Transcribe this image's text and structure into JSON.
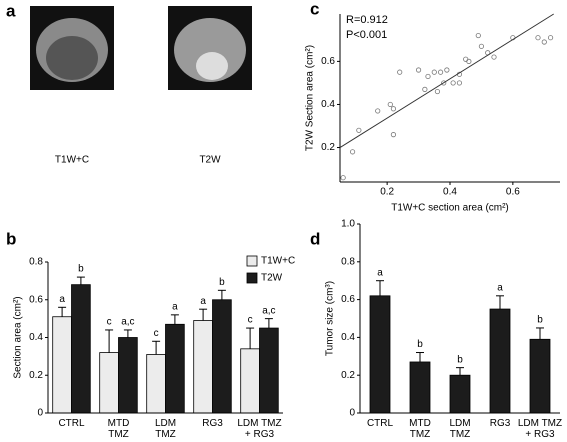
{
  "image_panel": {
    "panel": "a",
    "labels": [
      "T1W+C",
      "T2W"
    ]
  },
  "chart_data": [
    {
      "type": "scatter",
      "panel": "c",
      "xlabel": "T1W+C section area (cm²)",
      "ylabel": "T2W Section area (cm²)",
      "annotations": [
        "R=0.912",
        "P<0.001"
      ],
      "x": [
        0.06,
        0.09,
        0.11,
        0.17,
        0.21,
        0.22,
        0.22,
        0.24,
        0.3,
        0.32,
        0.33,
        0.35,
        0.36,
        0.37,
        0.38,
        0.39,
        0.41,
        0.43,
        0.43,
        0.45,
        0.46,
        0.49,
        0.5,
        0.52,
        0.54,
        0.6,
        0.68,
        0.7,
        0.72
      ],
      "y": [
        0.06,
        0.18,
        0.28,
        0.37,
        0.4,
        0.26,
        0.38,
        0.55,
        0.56,
        0.47,
        0.53,
        0.55,
        0.46,
        0.55,
        0.5,
        0.56,
        0.5,
        0.5,
        0.54,
        0.61,
        0.6,
        0.72,
        0.67,
        0.64,
        0.62,
        0.71,
        0.71,
        0.69,
        0.71
      ],
      "fit_line": {
        "x": [
          0.05,
          0.73
        ],
        "y": [
          0.2,
          0.82
        ]
      },
      "xlim": [
        0.05,
        0.75
      ],
      "ylim": [
        0.04,
        0.82
      ],
      "xticks": [
        0.2,
        0.4,
        0.6
      ],
      "yticks": [
        0.2,
        0.4,
        0.6
      ],
      "color": "#777"
    },
    {
      "type": "bar",
      "panel": "b",
      "ylabel": "Section area (cm²)",
      "categories": [
        "CTRL",
        "MTD\nTMZ",
        "LDM\nTMZ",
        "RG3",
        "LDM TMZ\n+ RG3"
      ],
      "series": [
        {
          "name": "T1W+C",
          "color": "#ececec",
          "values": [
            0.51,
            0.32,
            0.31,
            0.49,
            0.34
          ],
          "errors": [
            0.05,
            0.12,
            0.07,
            0.06,
            0.11
          ],
          "letters": [
            "a",
            "c",
            "c",
            "a",
            "c"
          ]
        },
        {
          "name": "T2W",
          "color": "#1c1c1c",
          "values": [
            0.68,
            0.4,
            0.47,
            0.6,
            0.45
          ],
          "errors": [
            0.04,
            0.04,
            0.05,
            0.05,
            0.05
          ],
          "letters": [
            "b",
            "a,c",
            "a",
            "b",
            "a,c"
          ]
        }
      ],
      "ylim": [
        0,
        0.8
      ],
      "yticks": [
        0,
        0.2,
        0.4,
        0.6,
        0.8
      ]
    },
    {
      "type": "bar",
      "panel": "d",
      "ylabel": "Tumor size (cm³)",
      "categories": [
        "CTRL",
        "MTD\nTMZ",
        "LDM\nTMZ",
        "RG3",
        "LDM TMZ\n+ RG3"
      ],
      "series": [
        {
          "color": "#1c1c1c",
          "values": [
            0.62,
            0.27,
            0.2,
            0.55,
            0.39
          ],
          "errors": [
            0.08,
            0.05,
            0.04,
            0.07,
            0.06
          ],
          "letters": [
            "a",
            "b",
            "b",
            "a",
            "b"
          ]
        }
      ],
      "ylim": [
        0,
        1.0
      ],
      "yticks": [
        0,
        0.2,
        0.4,
        0.6,
        0.8,
        {
          "value": 1.0,
          "label": "1.0"
        }
      ]
    }
  ]
}
